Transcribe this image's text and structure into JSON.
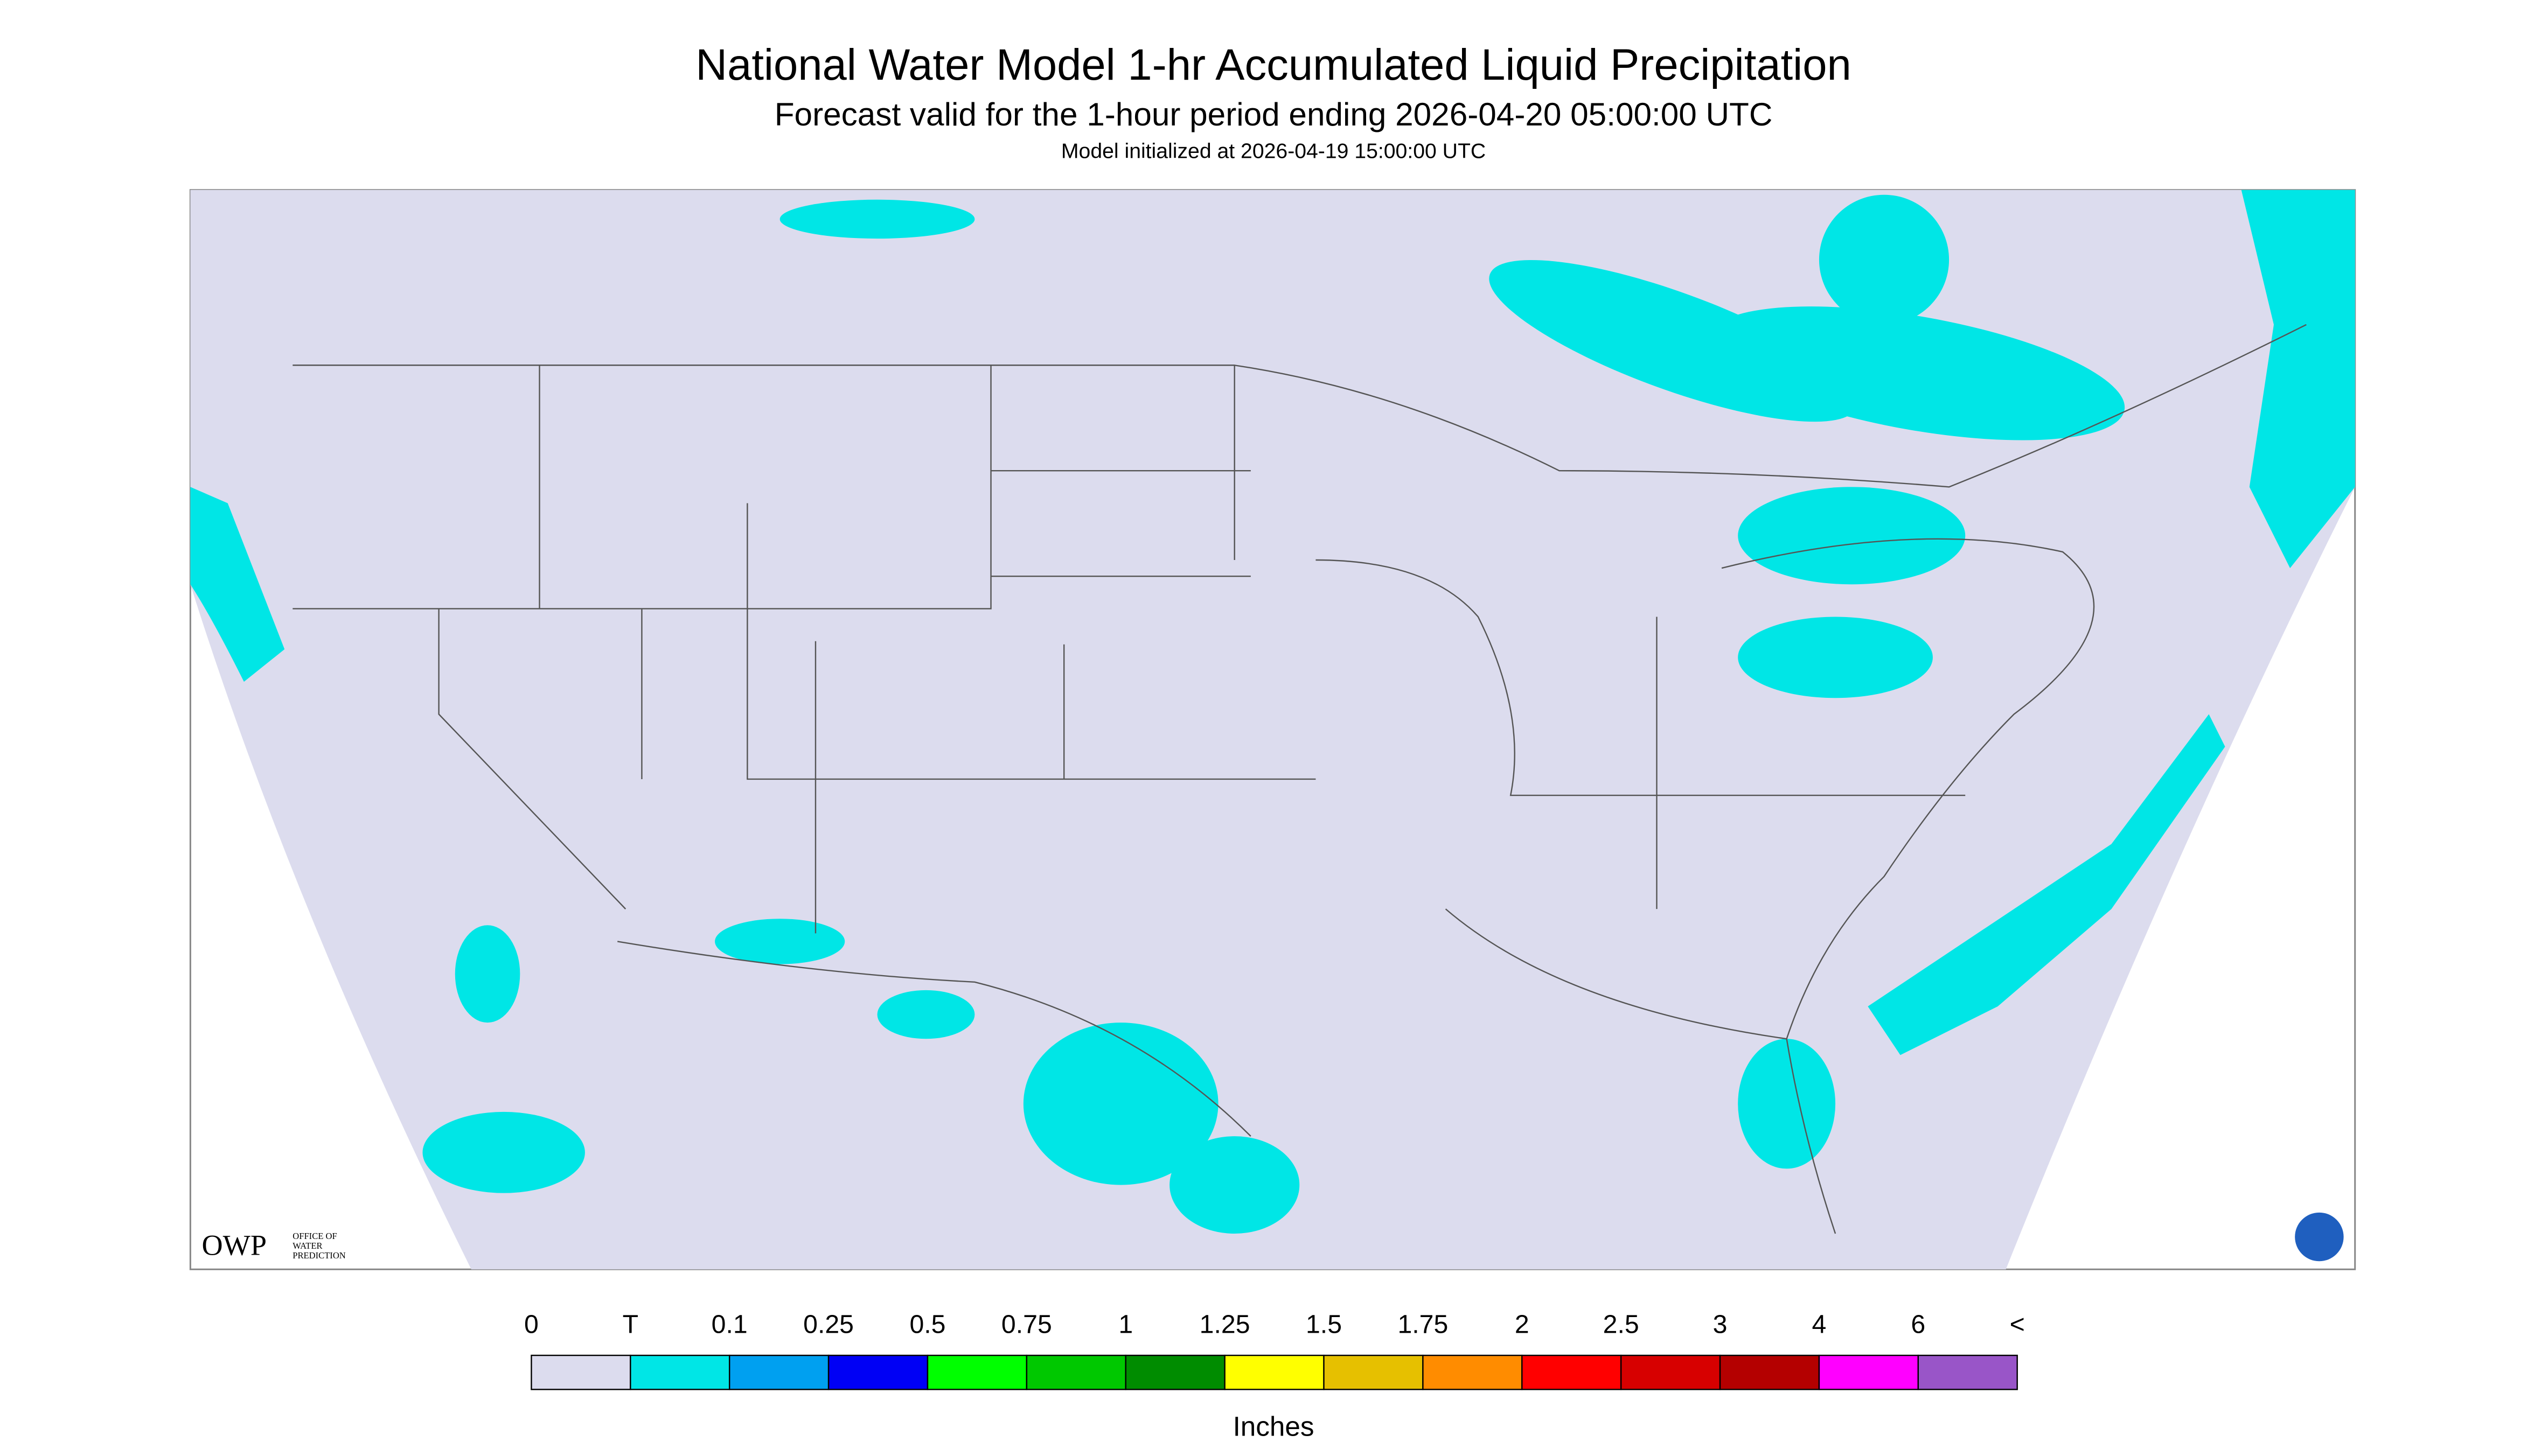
{
  "header": {
    "title": "National Water Model 1-hr Accumulated Liquid Precipitation",
    "subtitle": "Forecast valid for the 1-hour period ending 2026-04-20 05:00:00 UTC",
    "initialized": "Model initialized at 2026-04-19 15:00:00 UTC"
  },
  "legend": {
    "labels": [
      "0",
      "T",
      "0.1",
      "0.25",
      "0.5",
      "0.75",
      "1",
      "1.25",
      "1.5",
      "1.75",
      "2",
      "2.5",
      "3",
      "4",
      "6",
      "<"
    ],
    "colors": [
      "#dcdcee",
      "#00e6e6",
      "#00a0f0",
      "#0000f5",
      "#00ff00",
      "#00c800",
      "#008c00",
      "#ffff00",
      "#e6c000",
      "#ff8c00",
      "#ff0000",
      "#d70000",
      "#b40000",
      "#ff00ff",
      "#9955c8"
    ],
    "unit": "Inches"
  },
  "logo": {
    "text": "OWP",
    "subtext": [
      "OFFICE OF",
      "WATER",
      "PREDICTION"
    ]
  }
}
